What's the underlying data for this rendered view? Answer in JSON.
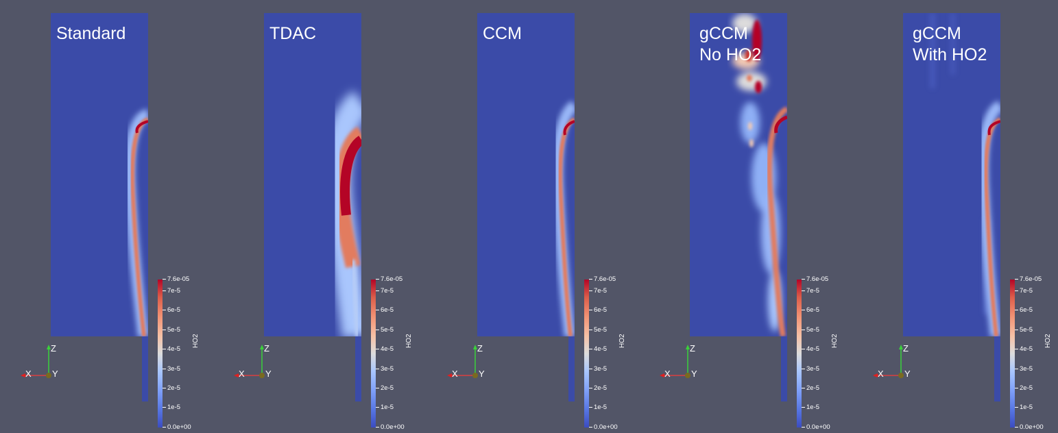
{
  "panels": [
    {
      "id": "standard",
      "title": "Standard"
    },
    {
      "id": "tdac",
      "title": "TDAC"
    },
    {
      "id": "ccm",
      "title": "CCM"
    },
    {
      "id": "gccm-no",
      "title": "gCCM\nNo HO2"
    },
    {
      "id": "gccm-with",
      "title": "gCCM\nWith HO2"
    }
  ],
  "colorbar": {
    "title": "HO2",
    "ticks": [
      "7.6e-05",
      "7e-5",
      "6e-5",
      "5e-5",
      "4e-5",
      "3e-5",
      "2e-5",
      "1e-5",
      "0.0e+00"
    ],
    "colors": [
      "#3b4cc0",
      "#b40426"
    ],
    "max": 7.6e-05,
    "min": 0
  },
  "axes": {
    "x": "X",
    "y": "Y",
    "z": "Z"
  }
}
